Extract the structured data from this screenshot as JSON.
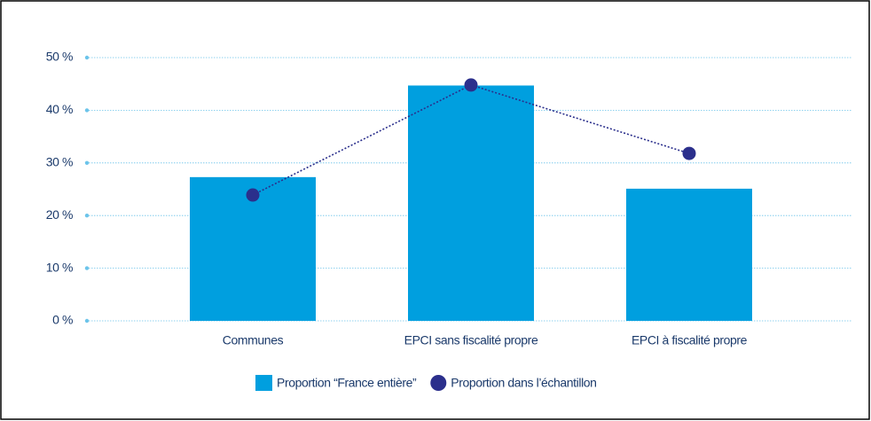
{
  "chart_data": {
    "type": "bar",
    "categories": [
      "Communes",
      "EPCI sans fiscalité propre",
      "EPCI à fiscalité propre"
    ],
    "series": [
      {
        "name": "Proportion “France entière”",
        "type": "bar",
        "color": "#009fdf",
        "values": [
          27.3,
          44.7,
          25.1
        ]
      },
      {
        "name": "Proportion dans l’échantillon",
        "type": "line",
        "color": "#2b2f8c",
        "values": [
          23.9,
          44.8,
          31.8
        ]
      }
    ],
    "ylim": [
      0,
      50
    ],
    "yticks": [
      {
        "value": 0,
        "label": "0 %"
      },
      {
        "value": 10,
        "label": "10 %"
      },
      {
        "value": 20,
        "label": "20 %"
      },
      {
        "value": 30,
        "label": "30 %"
      },
      {
        "value": 40,
        "label": "40 %"
      },
      {
        "value": 50,
        "label": "50 %"
      }
    ],
    "grid": true
  }
}
